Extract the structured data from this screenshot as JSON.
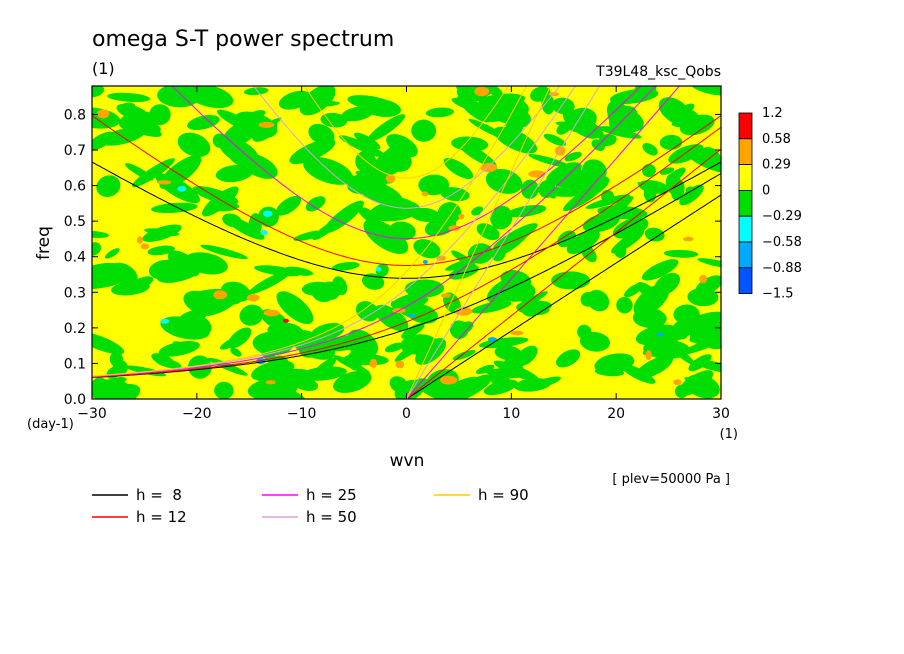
{
  "figure": {
    "title": "omega S-T power spectrum",
    "units": "(1)",
    "experiment": "T39L48_ksc_Qobs",
    "level_note": "[ plev=50000 Pa ]"
  },
  "chart_data": {
    "type": "heatmap",
    "xlabel": "wvn",
    "ylabel": "freq",
    "x_unit": "(1)",
    "y_unit": "(day-1)",
    "xlim": [
      -30,
      30
    ],
    "ylim": [
      0,
      0.88
    ],
    "x_ticks": [
      "-30",
      "-20",
      "-10",
      "0",
      "10",
      "20",
      "30"
    ],
    "y_ticks": [
      "0.0",
      "0.1",
      "0.2",
      "0.3",
      "0.4",
      "0.5",
      "0.6",
      "0.7",
      "0.8"
    ],
    "colorbar": {
      "levels": [
        "1.2",
        "0.58",
        "0.29",
        "0",
        "−0.29",
        "−0.58",
        "−0.88",
        "−1.5"
      ],
      "colors": [
        "#ff0000",
        "#ffa500",
        "#ffff00",
        "#00dd00",
        "#00ffff",
        "#00aaff",
        "#0055ff"
      ]
    },
    "background_color": "#ffff00",
    "patch_colors": [
      "#00dd00",
      "#ffa500",
      "#00ffff",
      "#00aaff",
      "#ff0000"
    ],
    "dispersion_curves": [
      {
        "name": "h =  8",
        "h": 8,
        "color": "#000000"
      },
      {
        "name": "h = 12",
        "h": 12,
        "color": "#ff0000"
      },
      {
        "name": "h = 25",
        "h": 25,
        "color": "#ff00ff"
      },
      {
        "name": "h = 50",
        "h": 50,
        "color": "#dda0dd"
      },
      {
        "name": "h = 90",
        "h": 90,
        "color": "#ffcc00"
      }
    ]
  }
}
